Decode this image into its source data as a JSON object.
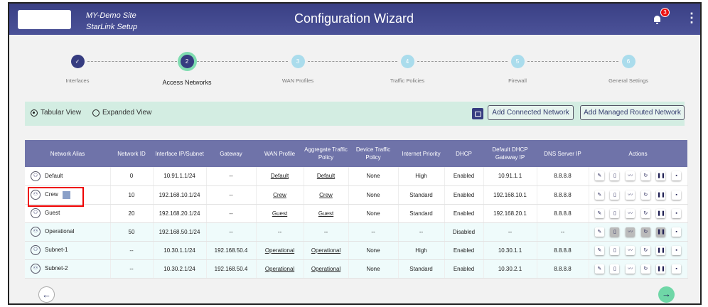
{
  "header": {
    "site_name": "MY-Demo Site",
    "site_sub": "StarLink Setup",
    "title": "Configuration Wizard",
    "notification_count": "3",
    "icons": [
      "bell-icon",
      "kebab-menu-icon"
    ]
  },
  "stepper": [
    {
      "num": "✓",
      "label": "Interfaces",
      "state": "done"
    },
    {
      "num": "2",
      "label": "Access Networks",
      "state": "active"
    },
    {
      "num": "3",
      "label": "WAN Profiles",
      "state": "pending"
    },
    {
      "num": "4",
      "label": "Traffic Policies",
      "state": "pending"
    },
    {
      "num": "5",
      "label": "Firewall",
      "state": "pending"
    },
    {
      "num": "6",
      "label": "General Settings",
      "state": "pending"
    }
  ],
  "toolbar": {
    "tabular": "Tabular View",
    "expanded": "Expanded View",
    "selected": "Tabular View",
    "add_connected": "Add Connected Network",
    "add_managed": "Add Managed Routed Network"
  },
  "table": {
    "headers": [
      "Network Alias",
      "Network ID",
      "Interface IP/Subnet",
      "Gateway",
      "WAN Profile",
      "Aggregate Traffic Policy",
      "Device Traffic Policy",
      "Internet Priority",
      "DHCP",
      "Default DHCP Gateway IP",
      "DNS Server IP",
      "Actions"
    ],
    "rows": [
      {
        "alias": "Default",
        "id": "0",
        "ip": "10.91.1.1/24",
        "gw": "--",
        "wan": "Default",
        "agg": "Default",
        "dev": "None",
        "prio": "High",
        "dhcp": "Enabled",
        "dgw": "10.91.1.1",
        "dns": "8.8.8.8",
        "disabled_actions": false
      },
      {
        "alias": "Crew",
        "id": "10",
        "ip": "192.168.10.1/24",
        "gw": "--",
        "wan": "Crew",
        "agg": "Crew",
        "dev": "None",
        "prio": "Standard",
        "dhcp": "Enabled",
        "dgw": "192.168.10.1",
        "dns": "8.8.8.8",
        "disabled_actions": false,
        "locked": true
      },
      {
        "alias": "Guest",
        "id": "20",
        "ip": "192.168.20.1/24",
        "gw": "--",
        "wan": "Guest",
        "agg": "Guest",
        "dev": "None",
        "prio": "Standard",
        "dhcp": "Enabled",
        "dgw": "192.168.20.1",
        "dns": "8.8.8.8",
        "disabled_actions": false
      },
      {
        "alias": "Operational",
        "id": "50",
        "ip": "192.168.50.1/24",
        "gw": "--",
        "wan": "--",
        "agg": "--",
        "dev": "--",
        "prio": "--",
        "dhcp": "Disabled",
        "dgw": "--",
        "dns": "--",
        "disabled_actions": true
      },
      {
        "alias": "Subnet-1",
        "id": "--",
        "ip": "10.30.1.1/24",
        "gw": "192.168.50.4",
        "wan": "Operational",
        "agg": "Operational",
        "dev": "None",
        "prio": "High",
        "dhcp": "Enabled",
        "dgw": "10.30.1.1",
        "dns": "8.8.8.8",
        "disabled_actions": false
      },
      {
        "alias": "Subnet-2",
        "id": "--",
        "ip": "10.30.2.1/24",
        "gw": "192.168.50.4",
        "wan": "Operational",
        "agg": "Operational",
        "dev": "None",
        "prio": "Standard",
        "dhcp": "Enabled",
        "dgw": "10.30.2.1",
        "dns": "8.8.8.8",
        "disabled_actions": false
      }
    ],
    "actions": [
      "edit-icon",
      "device-icon",
      "chart-icon",
      "refresh-icon",
      "pause-icon",
      "delete-icon"
    ]
  },
  "nav": {
    "prev": "←",
    "next": "→"
  },
  "colors": {
    "header": "#3a4085",
    "accent": "#7fdcb0",
    "table_header": "#6f73a9",
    "highlight": "#e00000"
  }
}
